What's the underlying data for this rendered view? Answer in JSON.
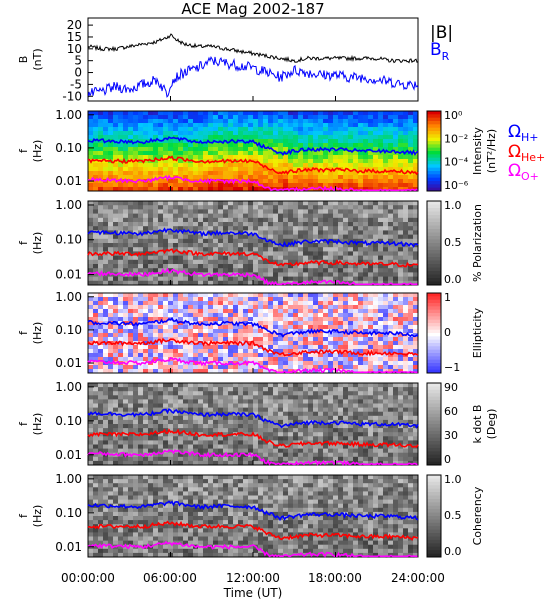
{
  "title": "ACE Mag 2002-187",
  "xlabel": "Time (UT)",
  "x_ticks": [
    "00:00:00",
    "06:00:00",
    "12:00:00",
    "18:00:00",
    "24:00:00"
  ],
  "legend_top": {
    "b_total": "|B|",
    "b_r": "B",
    "b_r_sub": "R"
  },
  "legend_right": [
    {
      "sym": "Ω",
      "sub": "H+",
      "color": "#0000ff"
    },
    {
      "sym": "Ω",
      "sub": "He+",
      "color": "#ff0000"
    },
    {
      "sym": "Ω",
      "sub": "O+",
      "color": "#ff00ff"
    }
  ],
  "panel_ylabel_f": {
    "main": "f",
    "unit": "(Hz)"
  },
  "panel_ylabel_b": {
    "main": "B",
    "unit": "(nT)"
  },
  "freq_ticks": [
    "1.00",
    "0.10",
    "0.01"
  ],
  "b_ticks": [
    "20",
    "15",
    "10",
    "5",
    "0",
    "-5",
    "-10"
  ],
  "colors": {
    "b_total": "#000000",
    "b_r": "#0000ff",
    "h_plus": "#0000ff",
    "he_plus": "#ff0000",
    "o_plus": "#ff00ff"
  },
  "colorbars": [
    {
      "label": "Intensity",
      "unit": "(nT²/Hz)",
      "ticks": [
        "10⁰",
        "10⁻²",
        "10⁻⁴",
        "10⁻⁶"
      ],
      "scheme": "rainbow"
    },
    {
      "label": "% Polarization",
      "unit": "",
      "ticks": [
        "1.0",
        "0.5",
        "0.0"
      ],
      "scheme": "gray"
    },
    {
      "label": "Ellipticity",
      "unit": "",
      "ticks": [
        "1",
        "0",
        "−1"
      ],
      "scheme": "bwr"
    },
    {
      "label": "k dot B",
      "unit": "(Deg)",
      "ticks": [
        "90",
        "60",
        "30",
        "0"
      ],
      "scheme": "gray"
    },
    {
      "label": "Coherency",
      "unit": "",
      "ticks": [
        "1.0",
        "0.5",
        "0.0"
      ],
      "scheme": "gray"
    }
  ],
  "chart_data": [
    {
      "type": "line",
      "title": "ACE Mag 2002-187",
      "ylabel": "B (nT)",
      "xlim": [
        0,
        24
      ],
      "ylim": [
        -12,
        23
      ],
      "series": [
        {
          "name": "|B|",
          "color": "#000000",
          "x": [
            0,
            1,
            2,
            3,
            4,
            5,
            5.8,
            6,
            6.4,
            7,
            8,
            9,
            10,
            11,
            12,
            13,
            14,
            15,
            16,
            17,
            18,
            19,
            20,
            21,
            22,
            23,
            24
          ],
          "values": [
            11,
            10,
            10,
            11,
            12,
            13,
            15,
            16,
            14,
            12,
            11,
            11,
            10,
            9,
            8,
            7,
            6,
            5,
            6,
            6,
            6,
            6,
            6,
            6,
            5,
            5,
            5
          ]
        },
        {
          "name": "B_R",
          "color": "#0000ff",
          "x": [
            0,
            1,
            2,
            3,
            4,
            5,
            5.8,
            6,
            6.4,
            7,
            8,
            9,
            10,
            11,
            12,
            13,
            14,
            15,
            16,
            17,
            18,
            19,
            20,
            21,
            22,
            23,
            24
          ],
          "values": [
            -9,
            -8,
            -6,
            -7,
            -5,
            -3,
            -9,
            -4,
            -2,
            0,
            2,
            5,
            4,
            3,
            2,
            0,
            -2,
            1,
            0,
            -1,
            -1,
            -2,
            -2,
            -3,
            -4,
            -5,
            -5
          ]
        }
      ]
    },
    {
      "type": "heatmap",
      "ylabel": "f (Hz)",
      "yscale": "log",
      "ylim": [
        0.005,
        1.3
      ],
      "xlim": [
        0,
        24
      ],
      "colorbar": "Intensity (nT²/Hz)",
      "lines": [
        {
          "name": "Ω_H+",
          "color": "#0000ff",
          "x": [
            0,
            4,
            6,
            8,
            10,
            12,
            13,
            14,
            16,
            18,
            20,
            22,
            24
          ],
          "values": [
            0.17,
            0.15,
            0.2,
            0.15,
            0.16,
            0.15,
            0.1,
            0.07,
            0.09,
            0.09,
            0.08,
            0.08,
            0.07
          ]
        },
        {
          "name": "Ω_He+",
          "color": "#ff0000",
          "x": [
            0,
            4,
            6,
            8,
            10,
            12,
            13,
            14,
            16,
            18,
            20,
            22,
            24
          ],
          "values": [
            0.04,
            0.04,
            0.05,
            0.04,
            0.04,
            0.04,
            0.025,
            0.018,
            0.022,
            0.022,
            0.02,
            0.02,
            0.018
          ]
        },
        {
          "name": "Ω_O+",
          "color": "#ff00ff",
          "x": [
            0,
            4,
            6,
            8,
            10,
            12,
            13,
            14,
            16,
            18,
            20,
            22,
            24
          ],
          "values": [
            0.011,
            0.01,
            0.013,
            0.01,
            0.01,
            0.01,
            0.006,
            0.005,
            0.006,
            0.006,
            0.005,
            0.005,
            0.005
          ]
        }
      ]
    },
    {
      "type": "heatmap",
      "ylabel": "f (Hz)",
      "yscale": "log",
      "ylim": [
        0.005,
        1.3
      ],
      "xlim": [
        0,
        24
      ],
      "colorbar": "% Polarization"
    },
    {
      "type": "heatmap",
      "ylabel": "f (Hz)",
      "yscale": "log",
      "ylim": [
        0.005,
        1.3
      ],
      "xlim": [
        0,
        24
      ],
      "colorbar": "Ellipticity"
    },
    {
      "type": "heatmap",
      "ylabel": "f (Hz)",
      "yscale": "log",
      "ylim": [
        0.005,
        1.3
      ],
      "xlim": [
        0,
        24
      ],
      "colorbar": "k dot B (Deg)"
    },
    {
      "type": "heatmap",
      "ylabel": "f (Hz)",
      "yscale": "log",
      "ylim": [
        0.005,
        1.3
      ],
      "xlim": [
        0,
        24
      ],
      "colorbar": "Coherency"
    }
  ]
}
